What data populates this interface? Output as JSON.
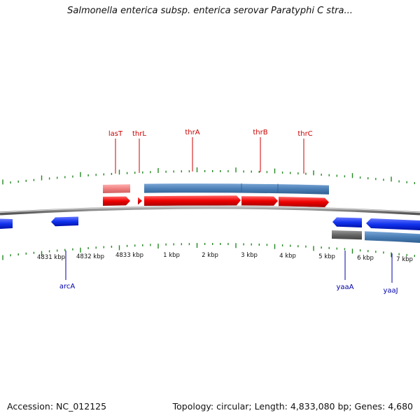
{
  "title": "Salmonella enterica subsp. enterica serovar Paratyphi C stra...",
  "footer": {
    "accession": "Accession: NC_012125",
    "summary": "Topology: circular; Length: 4,833,080 bp; Genes: 4,680"
  },
  "colors": {
    "forward_gene": "#ee1111",
    "forward_gene_faint": "#f08080",
    "reverse_gene": "#1133dd",
    "cds_band": "#4a7fb5",
    "grey_band": "#666666",
    "backbone": "#888888",
    "ticks": "#228822",
    "top_label": "#cc0000",
    "bottom_label": "#0000aa"
  },
  "top_genes": [
    {
      "name": "lasT"
    },
    {
      "name": "thrL"
    },
    {
      "name": "thrA"
    },
    {
      "name": "thrB"
    },
    {
      "name": "thrC"
    }
  ],
  "bottom_genes": [
    {
      "name": "arcA"
    },
    {
      "name": "yaaA"
    },
    {
      "name": "yaaJ"
    }
  ],
  "scale_labels": [
    "4831 kbp",
    "4832 kbp",
    "4833 kbp",
    "1 kbp",
    "2 kbp",
    "3 kbp",
    "4 kbp",
    "5 kbp",
    "6 kbp",
    "7 kbp"
  ]
}
